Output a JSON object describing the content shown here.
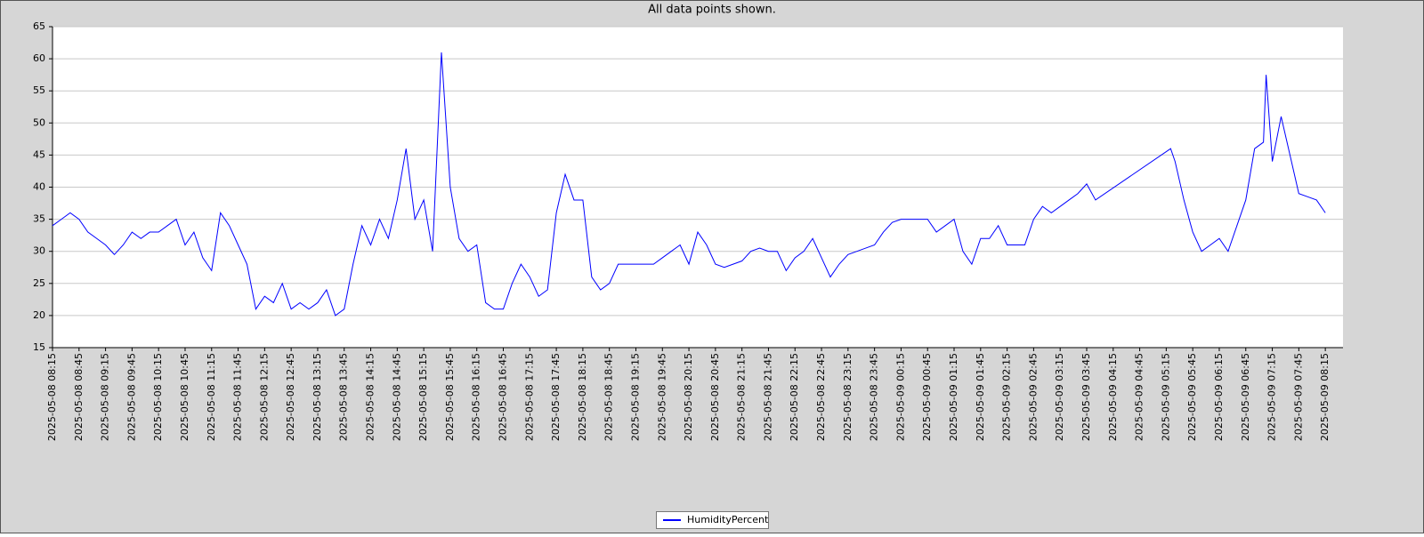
{
  "chart_data": {
    "type": "line",
    "title": "All data points shown.",
    "x": [
      "2025-05-08 08:15",
      "2025-05-08 08:25",
      "2025-05-08 08:35",
      "2025-05-08 08:45",
      "2025-05-08 08:55",
      "2025-05-08 09:05",
      "2025-05-08 09:15",
      "2025-05-08 09:25",
      "2025-05-08 09:35",
      "2025-05-08 09:45",
      "2025-05-08 09:55",
      "2025-05-08 10:05",
      "2025-05-08 10:15",
      "2025-05-08 10:25",
      "2025-05-08 10:35",
      "2025-05-08 10:45",
      "2025-05-08 10:55",
      "2025-05-08 11:05",
      "2025-05-08 11:15",
      "2025-05-08 11:25",
      "2025-05-08 11:35",
      "2025-05-08 11:45",
      "2025-05-08 11:55",
      "2025-05-08 12:05",
      "2025-05-08 12:15",
      "2025-05-08 12:25",
      "2025-05-08 12:35",
      "2025-05-08 12:45",
      "2025-05-08 12:55",
      "2025-05-08 13:05",
      "2025-05-08 13:15",
      "2025-05-08 13:25",
      "2025-05-08 13:35",
      "2025-05-08 13:45",
      "2025-05-08 13:55",
      "2025-05-08 14:05",
      "2025-05-08 14:15",
      "2025-05-08 14:25",
      "2025-05-08 14:35",
      "2025-05-08 14:45",
      "2025-05-08 14:55",
      "2025-05-08 15:05",
      "2025-05-08 15:15",
      "2025-05-08 15:25",
      "2025-05-08 15:35",
      "2025-05-08 15:45",
      "2025-05-08 15:55",
      "2025-05-08 16:05",
      "2025-05-08 16:15",
      "2025-05-08 16:25",
      "2025-05-08 16:35",
      "2025-05-08 16:45",
      "2025-05-08 16:55",
      "2025-05-08 17:05",
      "2025-05-08 17:15",
      "2025-05-08 17:25",
      "2025-05-08 17:35",
      "2025-05-08 17:45",
      "2025-05-08 17:55",
      "2025-05-08 18:05",
      "2025-05-08 18:15",
      "2025-05-08 18:25",
      "2025-05-08 18:35",
      "2025-05-08 18:45",
      "2025-05-08 18:55",
      "2025-05-08 19:05",
      "2025-05-08 19:15",
      "2025-05-08 19:25",
      "2025-05-08 19:35",
      "2025-05-08 19:45",
      "2025-05-08 19:55",
      "2025-05-08 20:05",
      "2025-05-08 20:15",
      "2025-05-08 20:25",
      "2025-05-08 20:35",
      "2025-05-08 20:45",
      "2025-05-08 20:55",
      "2025-05-08 21:05",
      "2025-05-08 21:15",
      "2025-05-08 21:25",
      "2025-05-08 21:35",
      "2025-05-08 21:45",
      "2025-05-08 21:55",
      "2025-05-08 22:05",
      "2025-05-08 22:15",
      "2025-05-08 22:25",
      "2025-05-08 22:35",
      "2025-05-08 22:45",
      "2025-05-08 22:55",
      "2025-05-08 23:05",
      "2025-05-08 23:15",
      "2025-05-08 23:25",
      "2025-05-08 23:35",
      "2025-05-08 23:45",
      "2025-05-08 23:55",
      "2025-05-09 00:05",
      "2025-05-09 00:15",
      "2025-05-09 00:25",
      "2025-05-09 00:35",
      "2025-05-09 00:45",
      "2025-05-09 00:55",
      "2025-05-09 01:05",
      "2025-05-09 01:15",
      "2025-05-09 01:25",
      "2025-05-09 01:35",
      "2025-05-09 01:45",
      "2025-05-09 01:55",
      "2025-05-09 02:05",
      "2025-05-09 02:15",
      "2025-05-09 02:25",
      "2025-05-09 02:35",
      "2025-05-09 02:45",
      "2025-05-09 02:55",
      "2025-05-09 03:05",
      "2025-05-09 03:15",
      "2025-05-09 03:25",
      "2025-05-09 03:35",
      "2025-05-09 03:45",
      "2025-05-09 03:55",
      "2025-05-09 05:20",
      "2025-05-09 05:25",
      "2025-05-09 05:35",
      "2025-05-09 05:45",
      "2025-05-09 05:55",
      "2025-05-09 06:05",
      "2025-05-09 06:15",
      "2025-05-09 06:25",
      "2025-05-09 06:35",
      "2025-05-09 06:45",
      "2025-05-09 06:55",
      "2025-05-09 07:05",
      "2025-05-09 07:08",
      "2025-05-09 07:15",
      "2025-05-09 07:25",
      "2025-05-09 07:35",
      "2025-05-09 07:45",
      "2025-05-09 07:55",
      "2025-05-09 08:05",
      "2025-05-09 08:15"
    ],
    "series": [
      {
        "name": "HumidityPercent",
        "color": "#0000ff",
        "values": [
          34,
          35,
          36,
          35,
          33,
          32,
          31,
          29.5,
          31,
          33,
          32,
          33,
          33,
          34,
          35,
          31,
          33,
          29,
          27,
          36,
          34,
          31,
          28,
          21,
          23,
          22,
          25,
          21,
          22,
          21,
          22,
          24,
          20,
          21,
          28,
          34,
          31,
          35,
          32,
          38,
          46,
          35,
          38,
          30,
          61,
          40,
          32,
          30,
          31,
          22,
          21,
          21,
          25,
          28,
          26,
          23,
          24,
          36,
          42,
          38,
          38,
          26,
          24,
          25,
          28,
          28,
          28,
          28,
          28,
          29,
          30,
          31,
          28,
          33,
          31,
          28,
          27.5,
          28,
          28.5,
          30,
          30.5,
          30,
          30,
          27,
          29,
          30,
          32,
          29,
          26,
          28,
          29.5,
          30,
          30.5,
          31,
          33,
          34.5,
          35,
          35,
          35,
          35,
          33,
          34,
          35,
          30,
          28,
          32,
          32,
          34,
          31,
          31,
          31,
          35,
          37,
          36,
          37,
          38,
          39,
          40.5,
          38,
          46,
          44,
          38,
          33,
          30,
          31,
          32,
          30,
          34,
          38,
          46,
          47,
          57.5,
          44,
          51,
          45,
          39,
          38.5,
          38,
          36
        ]
      }
    ],
    "xlim": [
      "2025-05-08 08:15",
      "2025-05-09 08:35"
    ],
    "xticks": [
      "2025-05-08 08:15",
      "2025-05-08 08:45",
      "2025-05-08 09:15",
      "2025-05-08 09:45",
      "2025-05-08 10:15",
      "2025-05-08 10:45",
      "2025-05-08 11:15",
      "2025-05-08 11:45",
      "2025-05-08 12:15",
      "2025-05-08 12:45",
      "2025-05-08 13:15",
      "2025-05-08 13:45",
      "2025-05-08 14:15",
      "2025-05-08 14:45",
      "2025-05-08 15:15",
      "2025-05-08 15:45",
      "2025-05-08 16:15",
      "2025-05-08 16:45",
      "2025-05-08 17:15",
      "2025-05-08 17:45",
      "2025-05-08 18:15",
      "2025-05-08 18:45",
      "2025-05-08 19:15",
      "2025-05-08 19:45",
      "2025-05-08 20:15",
      "2025-05-08 20:45",
      "2025-05-08 21:15",
      "2025-05-08 21:45",
      "2025-05-08 22:15",
      "2025-05-08 22:45",
      "2025-05-08 23:15",
      "2025-05-08 23:45",
      "2025-05-09 00:15",
      "2025-05-09 00:45",
      "2025-05-09 01:15",
      "2025-05-09 01:45",
      "2025-05-09 02:15",
      "2025-05-09 02:45",
      "2025-05-09 03:15",
      "2025-05-09 03:45",
      "2025-05-09 04:15",
      "2025-05-09 04:45",
      "2025-05-09 05:15",
      "2025-05-09 05:45",
      "2025-05-09 06:15",
      "2025-05-09 06:45",
      "2025-05-09 07:15",
      "2025-05-09 07:45",
      "2025-05-09 08:15"
    ],
    "ylim": [
      15,
      65
    ],
    "yticks": [
      15,
      20,
      25,
      30,
      35,
      40,
      45,
      50,
      55,
      60,
      65
    ],
    "grid": true
  }
}
